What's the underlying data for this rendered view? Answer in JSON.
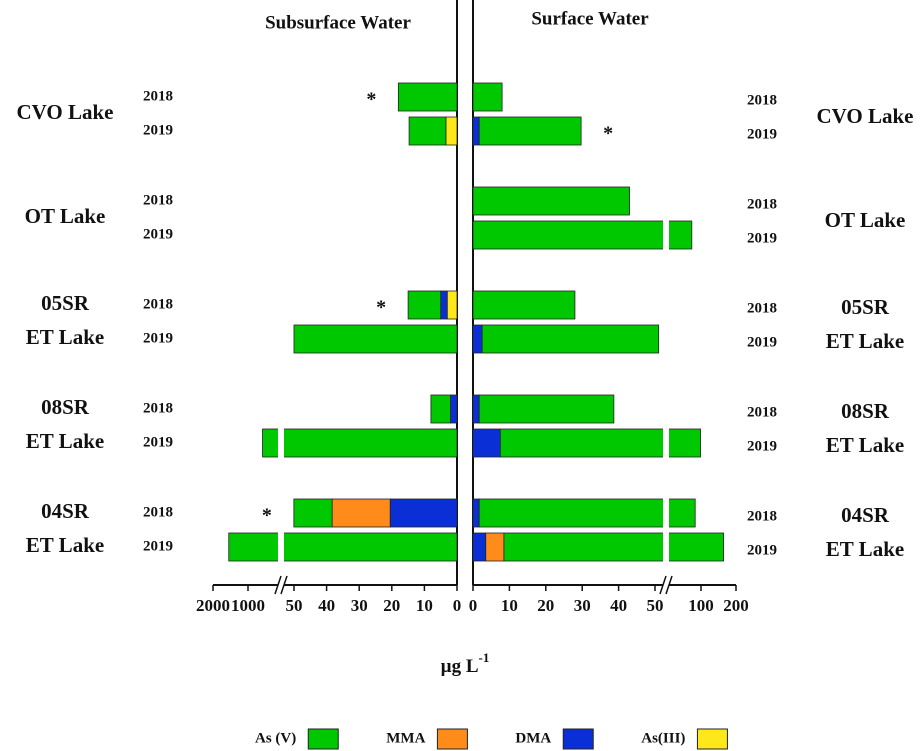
{
  "chart_data": {
    "type": "diverging_stacked_bar",
    "x_label": "µg L",
    "x_label_sup": "-1",
    "groups": [
      {
        "label_lines": [
          "CVO Lake"
        ],
        "years": [
          "2018",
          "2019"
        ]
      },
      {
        "label_lines": [
          "OT Lake"
        ],
        "years": [
          "2018",
          "2019"
        ]
      },
      {
        "label_lines": [
          "05SR",
          "ET Lake"
        ],
        "years": [
          "2018",
          "2019"
        ]
      },
      {
        "label_lines": [
          "08SR",
          "ET Lake"
        ],
        "years": [
          "2018",
          "2019"
        ]
      },
      {
        "label_lines": [
          "04SR",
          "ET Lake"
        ],
        "years": [
          "2018",
          "2019"
        ]
      }
    ],
    "legend": [
      "As (V)",
      "MMA",
      "DMA",
      "As(III)"
    ],
    "colors": [
      "#00c800",
      "#ff8c1a",
      "#0a2fd6",
      "#ffe81a"
    ],
    "panels": [
      {
        "title": "Subsurface Water",
        "xlim": [
          0,
          2000
        ],
        "xticks": [
          0,
          10,
          20,
          30,
          40,
          50,
          1000,
          2000
        ],
        "axis_break": 50,
        "series": [
          {
            "name": "As (V)",
            "values": [
              18,
              11.3,
              null,
              null,
              10,
              50.5,
              6,
              700,
              15,
              1550
            ]
          },
          {
            "name": "MMA",
            "values": [
              null,
              null,
              null,
              null,
              null,
              null,
              null,
              null,
              17.8,
              null
            ]
          },
          {
            "name": "DMA",
            "values": [
              null,
              null,
              null,
              null,
              2,
              null,
              2,
              null,
              20.5,
              null
            ]
          },
          {
            "name": "As(III)",
            "values": [
              null,
              3.4,
              null,
              null,
              3,
              null,
              null,
              null,
              null,
              null
            ]
          }
        ],
        "notes": [
          "*",
          null,
          null,
          null,
          "*",
          null,
          null,
          null,
          "*",
          null
        ]
      },
      {
        "title": "Surface Water",
        "xlim": [
          0,
          200
        ],
        "xticks": [
          0,
          10,
          20,
          30,
          40,
          50,
          100,
          200
        ],
        "axis_break": 50,
        "series": [
          {
            "name": "As (V)",
            "values": [
              8,
              28,
              43,
              90,
              28,
              51.5,
              37,
              92,
              92,
              156
            ]
          },
          {
            "name": "MMA",
            "values": [
              null,
              null,
              null,
              null,
              null,
              null,
              null,
              null,
              null,
              5
            ]
          },
          {
            "name": "DMA",
            "values": [
              null,
              1.7,
              null,
              null,
              null,
              2.5,
              1.7,
              7.5,
              1.7,
              3.5
            ]
          },
          {
            "name": "As(III)",
            "values": [
              null,
              null,
              null,
              null,
              null,
              null,
              null,
              null,
              null,
              null
            ]
          }
        ],
        "notes": [
          null,
          "*",
          null,
          null,
          null,
          null,
          null,
          null,
          null,
          null
        ]
      }
    ]
  }
}
